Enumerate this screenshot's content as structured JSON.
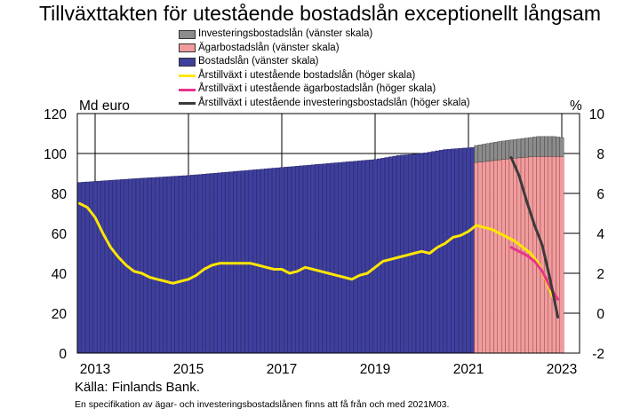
{
  "chart_data": {
    "type": "bar",
    "title": "Tillväxttakten för utestående bostadslån exceptionellt långsam",
    "left_axis": {
      "label": "Md euro",
      "ylim": [
        0,
        120
      ],
      "ticks": [
        "0",
        "20",
        "40",
        "60",
        "80",
        "100",
        "120"
      ]
    },
    "right_axis": {
      "label": "%",
      "ylim": [
        -2,
        10
      ],
      "ticks": [
        "-2",
        "0",
        "2",
        "4",
        "6",
        "8",
        "10"
      ]
    },
    "x_ticks": [
      "2013",
      "2015",
      "2017",
      "2019",
      "2021",
      "2023"
    ],
    "grid": true,
    "legend_position": "top",
    "legend": [
      {
        "name": "Investeringsbostadslån (vänster skala)",
        "kind": "box",
        "color": "#8c8c8c"
      },
      {
        "name": "Ägarbostadslån (vänster skala)",
        "kind": "box",
        "color": "#f29c9e"
      },
      {
        "name": "Bostadslån (vänster skala)",
        "kind": "box",
        "color": "#3f3f9e"
      },
      {
        "name": "Årstillväxt i utestående bostadslån (höger skala)",
        "kind": "line",
        "color": "#ffe600"
      },
      {
        "name": "Årstillväxt i utestående ägarbostadslån (höger skala)",
        "kind": "line",
        "color": "#e8338a"
      },
      {
        "name": "Årstillväxt i utestående investeringsbostadslån (höger skala)",
        "kind": "line",
        "color": "#3a3a3a"
      }
    ],
    "bars": {
      "period": "monthly",
      "start": "2012-09",
      "split_month": "2021-03",
      "total_anchors": [
        [
          "2012-09",
          85.5
        ],
        [
          "2013-12",
          87.5
        ],
        [
          "2015-01",
          89
        ],
        [
          "2016-01",
          91
        ],
        [
          "2017-01",
          93
        ],
        [
          "2018-01",
          95
        ],
        [
          "2019-01",
          97
        ],
        [
          "2019-07",
          99
        ],
        [
          "2020-01",
          100
        ],
        [
          "2020-07",
          102
        ],
        [
          "2021-02",
          103
        ],
        [
          "2021-03",
          104
        ],
        [
          "2021-09",
          106
        ],
        [
          "2022-01",
          107
        ],
        [
          "2022-07",
          108.5
        ],
        [
          "2022-11",
          108.5
        ],
        [
          "2023-01",
          108
        ]
      ],
      "owner_anchors": [
        [
          "2021-03",
          95.5
        ],
        [
          "2021-12",
          97.5
        ],
        [
          "2022-06",
          98.5
        ],
        [
          "2023-01",
          98.5
        ]
      ]
    },
    "lines": {
      "total_growth": [
        [
          "2012-09",
          5.5
        ],
        [
          "2012-11",
          5.3
        ],
        [
          "2013-01",
          4.8
        ],
        [
          "2013-03",
          4
        ],
        [
          "2013-05",
          3.3
        ],
        [
          "2013-07",
          2.8
        ],
        [
          "2013-09",
          2.4
        ],
        [
          "2013-11",
          2.1
        ],
        [
          "2014-01",
          2
        ],
        [
          "2014-03",
          1.8
        ],
        [
          "2014-05",
          1.7
        ],
        [
          "2014-07",
          1.6
        ],
        [
          "2014-09",
          1.5
        ],
        [
          "2014-11",
          1.6
        ],
        [
          "2015-01",
          1.7
        ],
        [
          "2015-03",
          1.9
        ],
        [
          "2015-05",
          2.2
        ],
        [
          "2015-07",
          2.4
        ],
        [
          "2015-09",
          2.5
        ],
        [
          "2015-11",
          2.5
        ],
        [
          "2016-01",
          2.5
        ],
        [
          "2016-03",
          2.5
        ],
        [
          "2016-05",
          2.5
        ],
        [
          "2016-07",
          2.4
        ],
        [
          "2016-09",
          2.3
        ],
        [
          "2016-11",
          2.2
        ],
        [
          "2017-01",
          2.2
        ],
        [
          "2017-03",
          2
        ],
        [
          "2017-05",
          2.1
        ],
        [
          "2017-07",
          2.3
        ],
        [
          "2017-09",
          2.2
        ],
        [
          "2017-11",
          2.1
        ],
        [
          "2018-01",
          2
        ],
        [
          "2018-03",
          1.9
        ],
        [
          "2018-05",
          1.8
        ],
        [
          "2018-07",
          1.7
        ],
        [
          "2018-09",
          1.9
        ],
        [
          "2018-11",
          2
        ],
        [
          "2019-01",
          2.3
        ],
        [
          "2019-03",
          2.6
        ],
        [
          "2019-05",
          2.7
        ],
        [
          "2019-07",
          2.8
        ],
        [
          "2019-09",
          2.9
        ],
        [
          "2019-11",
          3
        ],
        [
          "2020-01",
          3.1
        ],
        [
          "2020-03",
          3
        ],
        [
          "2020-05",
          3.3
        ],
        [
          "2020-07",
          3.5
        ],
        [
          "2020-09",
          3.8
        ],
        [
          "2020-11",
          3.9
        ],
        [
          "2021-01",
          4.1
        ],
        [
          "2021-03",
          4.4
        ],
        [
          "2021-05",
          4.3
        ],
        [
          "2021-07",
          4.2
        ],
        [
          "2021-09",
          4
        ],
        [
          "2021-11",
          3.8
        ],
        [
          "2022-01",
          3.6
        ],
        [
          "2022-03",
          3.3
        ],
        [
          "2022-05",
          3
        ],
        [
          "2022-07",
          2.5
        ],
        [
          "2022-09",
          1.6
        ],
        [
          "2022-11",
          0.7
        ]
      ],
      "owner_growth": [
        [
          "2021-12",
          3.3
        ],
        [
          "2022-02",
          3.1
        ],
        [
          "2022-04",
          2.9
        ],
        [
          "2022-06",
          2.6
        ],
        [
          "2022-08",
          2.1
        ],
        [
          "2022-10",
          1.3
        ],
        [
          "2022-12",
          0.7
        ]
      ],
      "investment_growth": [
        [
          "2021-12",
          7.8
        ],
        [
          "2022-02",
          6.9
        ],
        [
          "2022-04",
          5.6
        ],
        [
          "2022-06",
          4.4
        ],
        [
          "2022-08",
          3.4
        ],
        [
          "2022-10",
          1.7
        ],
        [
          "2022-12",
          -0.2
        ]
      ]
    },
    "source": "Källa: Finlands Bank.",
    "note": "En specifikation av ägar- och investeringsbostadslånen finns att få från och med 2021M03."
  },
  "colors": {
    "bostadslan": "#3f3f9e",
    "agar": "#f29c9e",
    "invest": "#8c8c8c",
    "growth_total": "#ffe600",
    "growth_agar": "#e8338a",
    "growth_invest": "#3a3a3a"
  }
}
